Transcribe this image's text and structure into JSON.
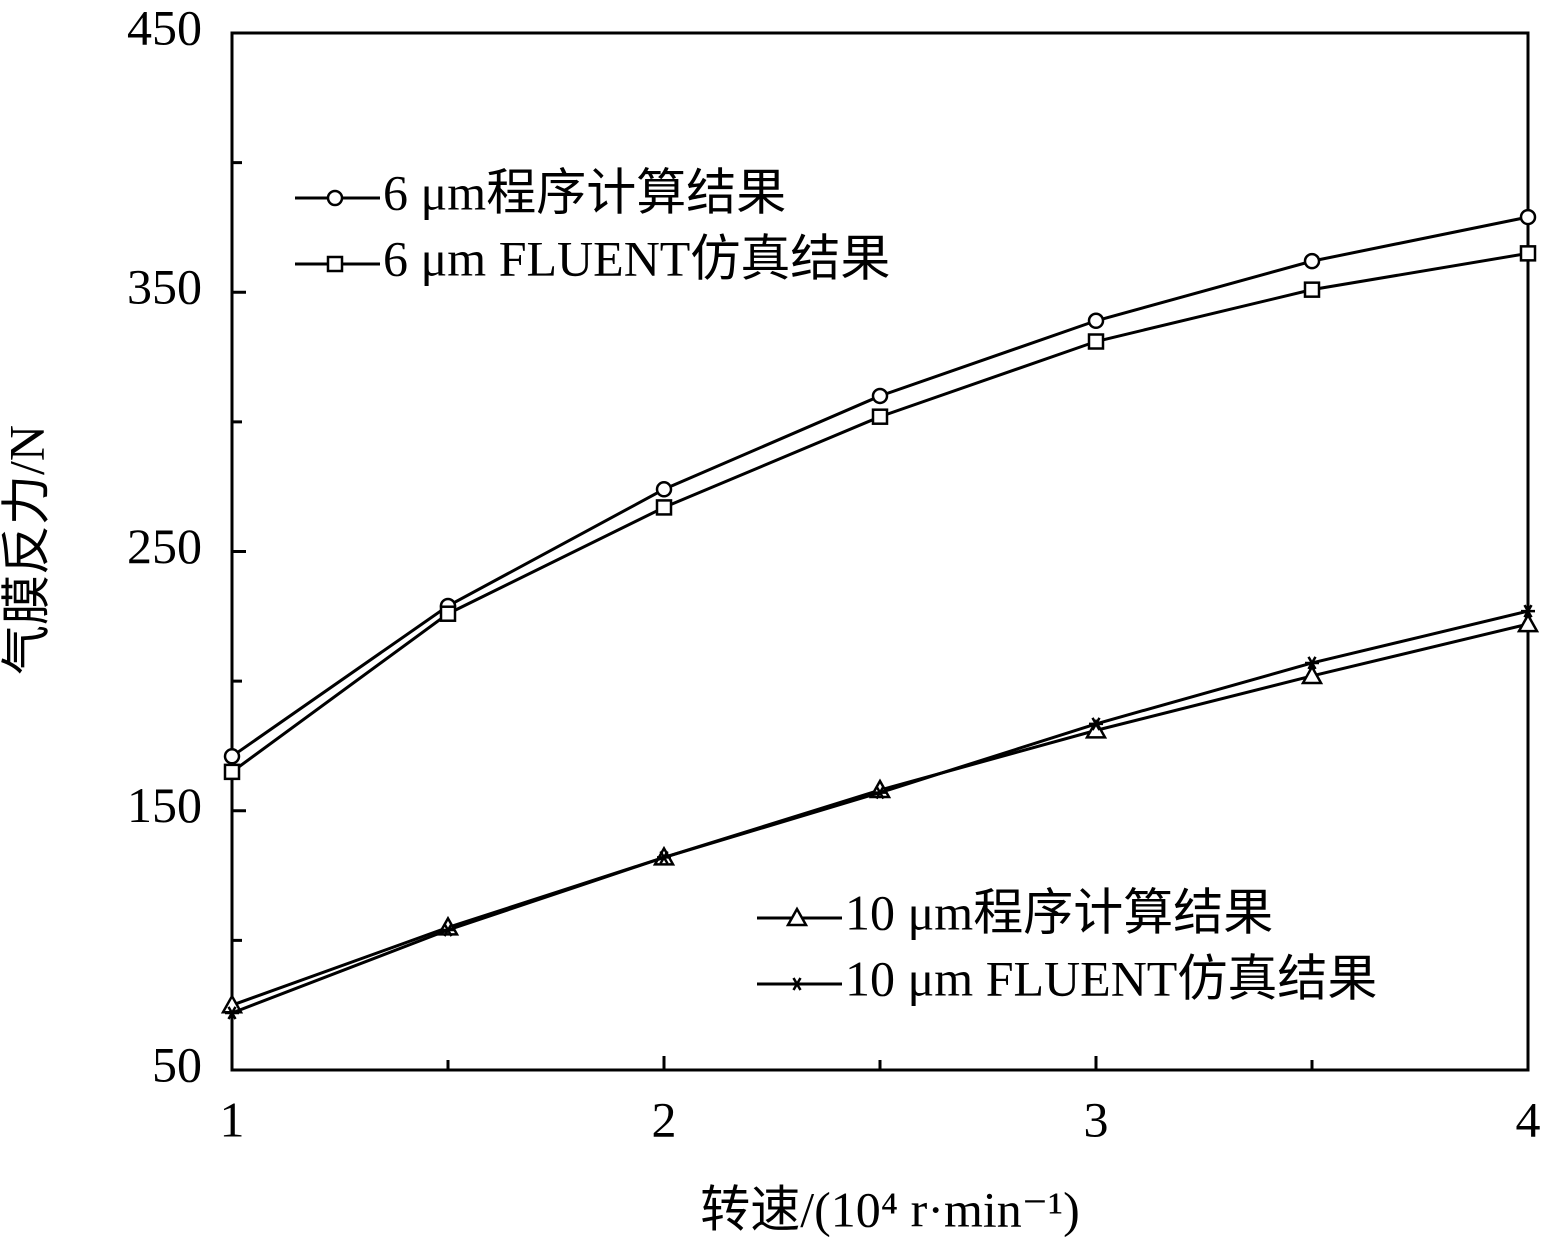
{
  "chart_data": {
    "type": "line",
    "xlabel": "转速/(10⁴ r·min⁻¹)",
    "ylabel": "气膜反力/N",
    "x": [
      1,
      1.5,
      2,
      2.5,
      3,
      3.5,
      4
    ],
    "series": [
      {
        "name": "6 μm程序计算结果",
        "color": "#000000",
        "marker": "circle",
        "legend": "upper left",
        "values": [
          171,
          229,
          274,
          310,
          339,
          362,
          379
        ]
      },
      {
        "name": "6 μm FLUENT仿真结果",
        "color": "#000000",
        "marker": "square",
        "legend": "upper left",
        "values": [
          165,
          226,
          267,
          302,
          331,
          351,
          365
        ]
      },
      {
        "name": "10 μm程序计算结果",
        "color": "#000000",
        "marker": "triangle",
        "legend": "lower right",
        "values": [
          75,
          105,
          132,
          158,
          181,
          202,
          222
        ]
      },
      {
        "name": "10 μm FLUENT仿真结果",
        "color": "#000000",
        "marker": "star",
        "legend": "lower right",
        "values": [
          72,
          104,
          132,
          157,
          183.5,
          207,
          227
        ]
      }
    ],
    "xlim": [
      1,
      4
    ],
    "xticks": [
      1,
      2,
      3,
      4
    ],
    "xminorticks": [
      1.5,
      2.5,
      3.5
    ],
    "ylim": [
      50,
      450
    ],
    "yticks": [
      50,
      150,
      250,
      350,
      450
    ],
    "yminorticks": [
      100,
      200,
      300,
      400
    ],
    "grid": false
  }
}
